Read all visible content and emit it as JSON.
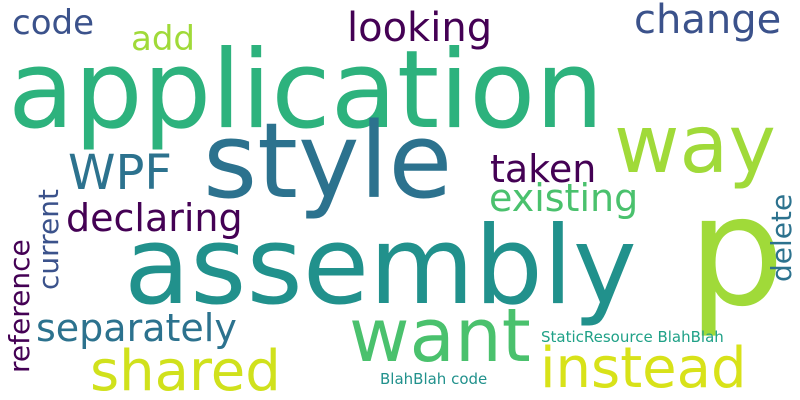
{
  "words": {
    "application": {
      "text": "application",
      "color": "#2db27d"
    },
    "style": {
      "text": "style",
      "color": "#2c728e"
    },
    "assembly": {
      "text": "assembly",
      "color": "#21918c"
    },
    "p": {
      "text": "p",
      "color": "#a0da39"
    },
    "way": {
      "text": "way",
      "color": "#a0da39"
    },
    "want": {
      "text": "want",
      "color": "#4ac16d"
    },
    "shared": {
      "text": "shared",
      "color": "#d0e11c"
    },
    "instead": {
      "text": "instead",
      "color": "#d8e219"
    },
    "separately": {
      "text": "separately",
      "color": "#2c728e"
    },
    "declaring": {
      "text": "declaring",
      "color": "#440154"
    },
    "wpf": {
      "text": "WPF",
      "color": "#2c728e"
    },
    "taken": {
      "text": "taken",
      "color": "#440154"
    },
    "existing": {
      "text": "existing",
      "color": "#4ac16d"
    },
    "delete": {
      "text": "delete",
      "color": "#2c728e"
    },
    "looking": {
      "text": "looking",
      "color": "#440154"
    },
    "change": {
      "text": "change",
      "color": "#3b528b"
    },
    "code": {
      "text": "code",
      "color": "#3b528b"
    },
    "add": {
      "text": "add",
      "color": "#a0da39"
    },
    "current": {
      "text": "current",
      "color": "#3b528b"
    },
    "reference": {
      "text": "reference",
      "color": "#440154"
    },
    "static_resource": {
      "text": "StaticResource BlahBlah",
      "color": "#1fa187"
    },
    "blahblah_code": {
      "text": "BlahBlah code",
      "color": "#21918c"
    }
  }
}
